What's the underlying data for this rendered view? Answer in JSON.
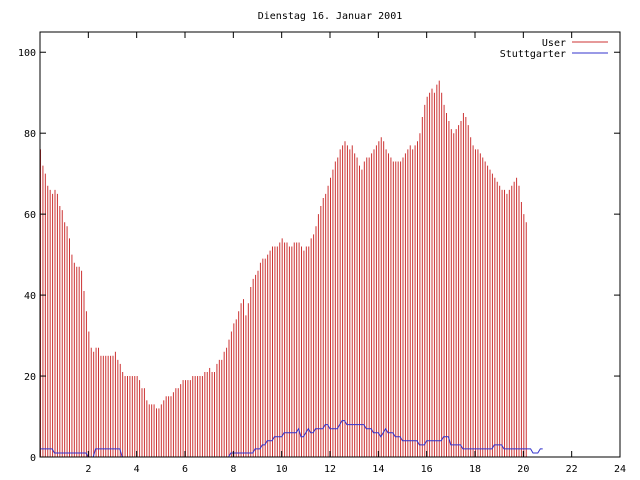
{
  "chart_data": {
    "type": "bar",
    "title": "Dienstag 16. Januar 2001",
    "xlabel": "",
    "ylabel": "",
    "xlim": [
      0,
      24
    ],
    "ylim": [
      0,
      105
    ],
    "xticks": [
      2,
      4,
      6,
      8,
      10,
      12,
      14,
      16,
      18,
      20,
      22,
      24
    ],
    "yticks": [
      0,
      20,
      40,
      60,
      80,
      100
    ],
    "grid": false,
    "legend_position": "top-right",
    "sample_interval_hours": 0.1,
    "series": [
      {
        "name": "User",
        "render": "impulses",
        "color": "#cc3333",
        "values": [
          76,
          72,
          70,
          67,
          66,
          65,
          66,
          65,
          62,
          61,
          58,
          57,
          54,
          50,
          48,
          47,
          47,
          46,
          41,
          36,
          31,
          27,
          26,
          27,
          27,
          25,
          25,
          25,
          25,
          25,
          25,
          26,
          24,
          23,
          21,
          20,
          20,
          20,
          20,
          20,
          20,
          19,
          17,
          17,
          14,
          13,
          13,
          13,
          12,
          12,
          13,
          14,
          15,
          15,
          15,
          16,
          17,
          17,
          18,
          19,
          19,
          19,
          19,
          20,
          20,
          20,
          20,
          20,
          21,
          21,
          22,
          21,
          21,
          23,
          24,
          24,
          26,
          27,
          29,
          31,
          33,
          34,
          36,
          38,
          39,
          35,
          38,
          42,
          44,
          45,
          46,
          48,
          49,
          49,
          50,
          51,
          52,
          52,
          52,
          53,
          54,
          53,
          53,
          52,
          52,
          53,
          53,
          53,
          52,
          51,
          52,
          52,
          54,
          55,
          57,
          60,
          62,
          64,
          65,
          67,
          69,
          71,
          73,
          74,
          76,
          77,
          78,
          77,
          76,
          77,
          75,
          74,
          72,
          71,
          73,
          74,
          74,
          75,
          76,
          77,
          78,
          79,
          78,
          76,
          75,
          74,
          73,
          73,
          73,
          73,
          74,
          75,
          76,
          77,
          76,
          77,
          78,
          80,
          84,
          87,
          89,
          90,
          91,
          90,
          92,
          93,
          90,
          87,
          85,
          83,
          81,
          80,
          81,
          82,
          83,
          85,
          84,
          82,
          79,
          77,
          76,
          76,
          75,
          74,
          73,
          72,
          71,
          70,
          69,
          68,
          67,
          66,
          66,
          65,
          66,
          67,
          68,
          69,
          67,
          63,
          60,
          58
        ]
      },
      {
        "name": "Stuttgarter",
        "render": "line",
        "color": "#3333cc",
        "values": [
          2,
          2,
          2,
          2,
          2,
          2,
          1,
          1,
          1,
          1,
          1,
          1,
          1,
          1,
          1,
          1,
          1,
          1,
          1,
          1,
          0,
          0,
          0,
          2,
          2,
          2,
          2,
          2,
          2,
          2,
          2,
          2,
          2,
          2,
          0,
          0,
          0,
          0,
          0,
          0,
          0,
          0,
          0,
          0,
          0,
          0,
          0,
          0,
          0,
          0,
          0,
          0,
          0,
          0,
          0,
          0,
          0,
          0,
          0,
          0,
          0,
          0,
          0,
          0,
          0,
          0,
          0,
          0,
          0,
          0,
          0,
          0,
          0,
          0,
          0,
          0,
          0,
          0,
          0,
          1,
          1,
          1,
          1,
          1,
          1,
          1,
          1,
          1,
          1,
          2,
          2,
          2,
          3,
          3,
          4,
          4,
          4,
          5,
          5,
          5,
          5,
          6,
          6,
          6,
          6,
          6,
          6,
          7,
          5,
          5,
          6,
          7,
          6,
          6,
          7,
          7,
          7,
          7,
          8,
          8,
          7,
          7,
          7,
          7,
          8,
          9,
          9,
          8,
          8,
          8,
          8,
          8,
          8,
          8,
          8,
          7,
          7,
          7,
          6,
          6,
          6,
          5,
          6,
          7,
          6,
          6,
          6,
          5,
          5,
          5,
          4,
          4,
          4,
          4,
          4,
          4,
          4,
          3,
          3,
          3,
          4,
          4,
          4,
          4,
          4,
          4,
          4,
          5,
          5,
          5,
          3,
          3,
          3,
          3,
          3,
          2,
          2,
          2,
          2,
          2,
          2,
          2,
          2,
          2,
          2,
          2,
          2,
          2,
          3,
          3,
          3,
          3,
          2,
          2,
          2,
          2,
          2,
          2,
          2,
          2,
          2,
          2,
          2,
          2,
          1,
          1,
          1,
          2,
          2
        ]
      }
    ]
  }
}
